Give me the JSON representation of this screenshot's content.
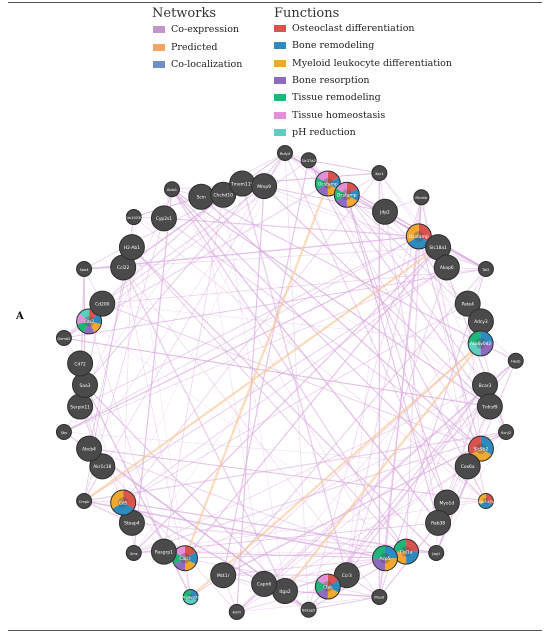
{
  "legend": {
    "networks_title": "Networks",
    "networks": [
      {
        "label": "Co-expression",
        "color": "#c394c9"
      },
      {
        "label": "Predicted",
        "color": "#f4a564"
      },
      {
        "label": "Co-localization",
        "color": "#6f8fc8"
      }
    ],
    "functions_title": "Functions",
    "functions": [
      {
        "label": "Osteoclast differentiation",
        "color": "#d9534f"
      },
      {
        "label": "Bone remodeling",
        "color": "#2e8bc0"
      },
      {
        "label": "Myeloid leukocyte differentiation",
        "color": "#f0a830"
      },
      {
        "label": "Bone resorption",
        "color": "#8e6bbf"
      },
      {
        "label": "Tissue remodeling",
        "color": "#1fb67a"
      },
      {
        "label": "Tissue homeostasis",
        "color": "#e58fd8"
      },
      {
        "label": "pH reduction",
        "color": "#5ccfc2"
      }
    ]
  },
  "panel_label": "A",
  "network": {
    "node_color": "#4a4a4a",
    "edge_coexpression_color": "#d9a8de",
    "edge_predicted_color": "#f6c48f",
    "nodes": [
      {
        "label": "Rufy4",
        "kind": "small",
        "functions": []
      },
      {
        "label": "Slc37a2",
        "kind": "small",
        "functions": []
      },
      {
        "label": "Ocstamp",
        "kind": "gene",
        "functions": [
          "#d9534f",
          "#2e8bc0",
          "#f0a830",
          "#8e6bbf",
          "#1fb67a",
          "#e58fd8"
        ]
      },
      {
        "label": "Dcstamp",
        "kind": "gene",
        "functions": [
          "#d9534f",
          "#2e8bc0",
          "#f0a830",
          "#8e6bbf",
          "#1fb67a",
          "#e58fd8"
        ]
      },
      {
        "label": "Xpr1",
        "kind": "small",
        "functions": []
      },
      {
        "label": "Jdp2",
        "kind": "gene",
        "functions": []
      },
      {
        "label": "Mcdnb",
        "kind": "small",
        "functions": []
      },
      {
        "label": "Ocstamp",
        "kind": "gene",
        "functions": [
          "#d9534f",
          "#2e8bc0",
          "#f0a830"
        ]
      },
      {
        "label": "Slc18a1",
        "kind": "gene",
        "functions": []
      },
      {
        "label": "Akap6",
        "kind": "gene",
        "functions": []
      },
      {
        "label": "Tal2",
        "kind": "small",
        "functions": []
      },
      {
        "label": "Pate4",
        "kind": "gene",
        "functions": []
      },
      {
        "label": "Adcy3",
        "kind": "gene",
        "functions": []
      },
      {
        "label": "Atp6v0d2",
        "kind": "gene",
        "functions": [
          "#2e8bc0",
          "#8e6bbf",
          "#5ccfc2",
          "#1fb67a"
        ]
      },
      {
        "label": "Hexb",
        "kind": "small",
        "functions": []
      },
      {
        "label": "Bcar3",
        "kind": "gene",
        "functions": []
      },
      {
        "label": "Tnfrsf9",
        "kind": "gene",
        "functions": []
      },
      {
        "label": "Kcnj2",
        "kind": "small",
        "functions": []
      },
      {
        "label": "Slc9b2",
        "kind": "gene",
        "functions": [
          "#2e8bc0",
          "#f0a830",
          "#d9534f"
        ]
      },
      {
        "label": "Cox6a",
        "kind": "gene",
        "functions": []
      },
      {
        "label": "Gpr137b",
        "kind": "small",
        "functions": [
          "#d9534f",
          "#2e8bc0",
          "#f0a830"
        ]
      },
      {
        "label": "Myo1d",
        "kind": "gene",
        "functions": []
      },
      {
        "label": "Rab38",
        "kind": "gene",
        "functions": []
      },
      {
        "label": "Jag1",
        "kind": "small",
        "functions": []
      },
      {
        "label": "Col1a",
        "kind": "gene",
        "functions": [
          "#d9534f",
          "#2e8bc0",
          "#f0a830",
          "#1fb67a"
        ]
      },
      {
        "label": "Acp5",
        "kind": "gene",
        "functions": [
          "#2e8bc0",
          "#f0a830",
          "#8e6bbf",
          "#1fb67a"
        ]
      },
      {
        "label": "Plaud",
        "kind": "small",
        "functions": []
      },
      {
        "label": "Ccr3",
        "kind": "gene",
        "functions": []
      },
      {
        "label": "Ctsk",
        "kind": "gene",
        "functions": [
          "#d9534f",
          "#2e8bc0",
          "#f0a830",
          "#8e6bbf",
          "#1fb67a",
          "#e58fd8"
        ]
      },
      {
        "label": "Nckap5",
        "kind": "small",
        "functions": []
      },
      {
        "label": "Itga2",
        "kind": "gene",
        "functions": []
      },
      {
        "label": "Capn6",
        "kind": "gene",
        "functions": []
      },
      {
        "label": "Amfr",
        "kind": "small",
        "functions": []
      },
      {
        "label": "Mst1r",
        "kind": "gene",
        "functions": []
      },
      {
        "label": "Atp6v0d1",
        "kind": "small",
        "functions": [
          "#2e8bc0",
          "#5ccfc2",
          "#1fb67a"
        ]
      },
      {
        "label": "Calcr",
        "kind": "gene",
        "functions": [
          "#d9534f",
          "#2e8bc0",
          "#f0a830",
          "#8e6bbf",
          "#1fb67a",
          "#e58fd8"
        ]
      },
      {
        "label": "Rasgrp1",
        "kind": "gene",
        "functions": []
      },
      {
        "label": "Sms",
        "kind": "small",
        "functions": []
      },
      {
        "label": "Steap4",
        "kind": "gene",
        "functions": []
      },
      {
        "label": "Cd5",
        "kind": "gene",
        "functions": [
          "#d9534f",
          "#2e8bc0",
          "#f0a830"
        ]
      },
      {
        "label": "Cmpk",
        "kind": "small",
        "functions": []
      },
      {
        "label": "Akr1c18",
        "kind": "gene",
        "functions": []
      },
      {
        "label": "Abcb4",
        "kind": "gene",
        "functions": []
      },
      {
        "label": "Sbs",
        "kind": "small",
        "functions": []
      },
      {
        "label": "Serpin11",
        "kind": "gene",
        "functions": []
      },
      {
        "label": "Saa3",
        "kind": "gene",
        "functions": []
      },
      {
        "label": "Cd72",
        "kind": "gene",
        "functions": []
      },
      {
        "label": "Gemb2",
        "kind": "small",
        "functions": []
      },
      {
        "label": "Car2",
        "kind": "gene",
        "functions": [
          "#d9534f",
          "#2e8bc0",
          "#f0a830",
          "#8e6bbf",
          "#1fb67a",
          "#e58fd8",
          "#5ccfc2"
        ]
      },
      {
        "label": "Cd200",
        "kind": "gene",
        "functions": []
      },
      {
        "label": "Saa4",
        "kind": "small",
        "functions": []
      },
      {
        "label": "Ccl22",
        "kind": "gene",
        "functions": []
      },
      {
        "label": "H2-Ab1",
        "kind": "gene",
        "functions": []
      },
      {
        "label": "Gm10230",
        "kind": "small",
        "functions": []
      },
      {
        "label": "Cyp2s1",
        "kind": "gene",
        "functions": []
      },
      {
        "label": "Aldo1",
        "kind": "small",
        "functions": []
      },
      {
        "label": "Scin",
        "kind": "gene",
        "functions": []
      },
      {
        "label": "Chchd10",
        "kind": "gene",
        "functions": []
      },
      {
        "label": "Tmem119",
        "kind": "gene",
        "functions": []
      },
      {
        "label": "Mmp9",
        "kind": "gene",
        "functions": []
      }
    ]
  }
}
